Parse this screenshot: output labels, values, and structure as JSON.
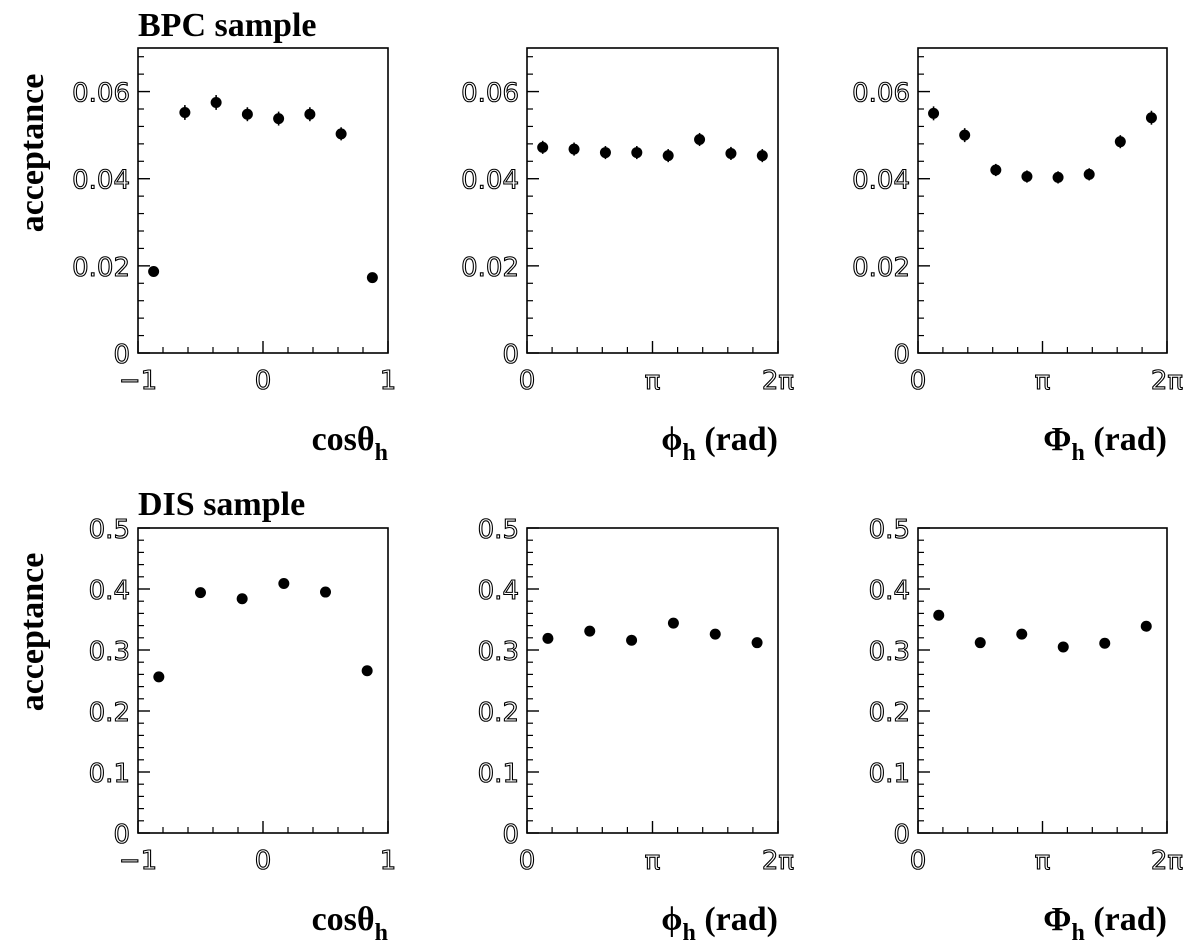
{
  "colors": {
    "marker": "#000000",
    "axis": "#000000",
    "background": "#ffffff"
  },
  "rows": [
    {
      "title": "BPC sample",
      "ylabel": "acceptance"
    },
    {
      "title": "DIS sample",
      "ylabel": "acceptance"
    }
  ],
  "chart_data": [
    {
      "type": "scatter",
      "xlabel_main": "cosθ",
      "xlabel_sub": "h",
      "xlabel_tail": "",
      "xlim": [
        -1,
        1
      ],
      "ylim": [
        0,
        0.07
      ],
      "xticks": [
        {
          "v": -1,
          "label": "−1"
        },
        {
          "v": 0,
          "label": "0"
        },
        {
          "v": 1,
          "label": "1"
        }
      ],
      "yticks": [
        {
          "v": 0,
          "label": "0"
        },
        {
          "v": 0.02,
          "label": "0.02"
        },
        {
          "v": 0.04,
          "label": "0.04"
        },
        {
          "v": 0.06,
          "label": "0.06"
        }
      ],
      "x": [
        -0.875,
        -0.625,
        -0.375,
        -0.125,
        0.125,
        0.375,
        0.625,
        0.875
      ],
      "y": [
        0.0187,
        0.0552,
        0.0575,
        0.0548,
        0.0538,
        0.0548,
        0.0503,
        0.0173
      ],
      "yerr": [
        0.0009,
        0.0017,
        0.0017,
        0.0016,
        0.0016,
        0.0016,
        0.0015,
        0.0009
      ]
    },
    {
      "type": "scatter",
      "xlabel_main": "ϕ",
      "xlabel_sub": "h",
      "xlabel_tail": " (rad)",
      "xlim": [
        0,
        6.2832
      ],
      "ylim": [
        0,
        0.07
      ],
      "xticks": [
        {
          "v": 0,
          "label": "0"
        },
        {
          "v": 3.1416,
          "label": "π"
        },
        {
          "v": 6.2832,
          "label": "2π"
        }
      ],
      "yticks": [
        {
          "v": 0,
          "label": "0"
        },
        {
          "v": 0.02,
          "label": "0.02"
        },
        {
          "v": 0.04,
          "label": "0.04"
        },
        {
          "v": 0.06,
          "label": "0.06"
        }
      ],
      "x": [
        0.3927,
        1.1781,
        1.9635,
        2.7489,
        3.5343,
        4.3197,
        5.1051,
        5.8905
      ],
      "y": [
        0.0472,
        0.0468,
        0.046,
        0.046,
        0.0453,
        0.049,
        0.0458,
        0.0453
      ],
      "yerr": [
        0.0015,
        0.0015,
        0.0015,
        0.0015,
        0.0015,
        0.0015,
        0.0015,
        0.0015
      ]
    },
    {
      "type": "scatter",
      "xlabel_main": "Φ",
      "xlabel_sub": "h",
      "xlabel_tail": " (rad)",
      "xlim": [
        0,
        6.2832
      ],
      "ylim": [
        0,
        0.07
      ],
      "xticks": [
        {
          "v": 0,
          "label": "0"
        },
        {
          "v": 3.1416,
          "label": "π"
        },
        {
          "v": 6.2832,
          "label": "2π"
        }
      ],
      "yticks": [
        {
          "v": 0,
          "label": "0"
        },
        {
          "v": 0.02,
          "label": "0.02"
        },
        {
          "v": 0.04,
          "label": "0.04"
        },
        {
          "v": 0.06,
          "label": "0.06"
        }
      ],
      "x": [
        0.3927,
        1.1781,
        1.9635,
        2.7489,
        3.5343,
        4.3197,
        5.1051,
        5.8905
      ],
      "y": [
        0.055,
        0.05,
        0.042,
        0.0405,
        0.0403,
        0.041,
        0.0485,
        0.054
      ],
      "yerr": [
        0.0016,
        0.0016,
        0.0014,
        0.0014,
        0.0014,
        0.0014,
        0.0015,
        0.0016
      ]
    },
    {
      "type": "scatter",
      "xlabel_main": "cosθ",
      "xlabel_sub": "h",
      "xlabel_tail": "",
      "xlim": [
        -1,
        1
      ],
      "ylim": [
        0,
        0.5
      ],
      "xticks": [
        {
          "v": -1,
          "label": "−1"
        },
        {
          "v": 0,
          "label": "0"
        },
        {
          "v": 1,
          "label": "1"
        }
      ],
      "yticks": [
        {
          "v": 0,
          "label": "0"
        },
        {
          "v": 0.1,
          "label": "0.1"
        },
        {
          "v": 0.2,
          "label": "0.2"
        },
        {
          "v": 0.3,
          "label": "0.3"
        },
        {
          "v": 0.4,
          "label": "0.4"
        },
        {
          "v": 0.5,
          "label": "0.5"
        }
      ],
      "x": [
        -0.8333,
        -0.5,
        -0.1667,
        0.1667,
        0.5,
        0.8333
      ],
      "y": [
        0.256,
        0.394,
        0.384,
        0.409,
        0.395,
        0.266
      ],
      "yerr": [
        0.004,
        0.005,
        0.005,
        0.005,
        0.005,
        0.004
      ]
    },
    {
      "type": "scatter",
      "xlabel_main": "ϕ",
      "xlabel_sub": "h",
      "xlabel_tail": " (rad)",
      "xlim": [
        0,
        6.2832
      ],
      "ylim": [
        0,
        0.5
      ],
      "xticks": [
        {
          "v": 0,
          "label": "0"
        },
        {
          "v": 3.1416,
          "label": "π"
        },
        {
          "v": 6.2832,
          "label": "2π"
        }
      ],
      "yticks": [
        {
          "v": 0,
          "label": "0"
        },
        {
          "v": 0.1,
          "label": "0.1"
        },
        {
          "v": 0.2,
          "label": "0.2"
        },
        {
          "v": 0.3,
          "label": "0.3"
        },
        {
          "v": 0.4,
          "label": "0.4"
        },
        {
          "v": 0.5,
          "label": "0.5"
        }
      ],
      "x": [
        0.5236,
        1.5708,
        2.618,
        3.6652,
        4.7124,
        5.7596
      ],
      "y": [
        0.319,
        0.331,
        0.316,
        0.344,
        0.326,
        0.312
      ],
      "yerr": [
        0.004,
        0.004,
        0.004,
        0.004,
        0.004,
        0.004
      ]
    },
    {
      "type": "scatter",
      "xlabel_main": "Φ",
      "xlabel_sub": "h",
      "xlabel_tail": " (rad)",
      "xlim": [
        0,
        6.2832
      ],
      "ylim": [
        0,
        0.5
      ],
      "xticks": [
        {
          "v": 0,
          "label": "0"
        },
        {
          "v": 3.1416,
          "label": "π"
        },
        {
          "v": 6.2832,
          "label": "2π"
        }
      ],
      "yticks": [
        {
          "v": 0,
          "label": "0"
        },
        {
          "v": 0.1,
          "label": "0.1"
        },
        {
          "v": 0.2,
          "label": "0.2"
        },
        {
          "v": 0.3,
          "label": "0.3"
        },
        {
          "v": 0.4,
          "label": "0.4"
        },
        {
          "v": 0.5,
          "label": "0.5"
        }
      ],
      "x": [
        0.5236,
        1.5708,
        2.618,
        3.6652,
        4.7124,
        5.7596
      ],
      "y": [
        0.357,
        0.312,
        0.326,
        0.305,
        0.311,
        0.339
      ],
      "yerr": [
        0.004,
        0.004,
        0.004,
        0.004,
        0.004,
        0.004
      ]
    }
  ]
}
